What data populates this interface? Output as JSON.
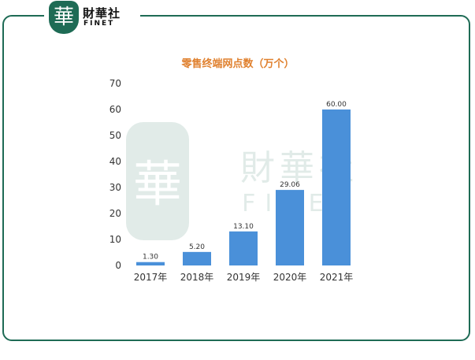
{
  "brand": {
    "name_cn": "財華社",
    "name_en": "FINET",
    "mark": "華",
    "color": "#1e6b55"
  },
  "watermark": {
    "name_cn": "財華社",
    "name_en": "FINET",
    "mark": "華"
  },
  "chart_data": {
    "type": "bar",
    "title": "零售终端网点数（万个）",
    "categories": [
      "2017年",
      "2018年",
      "2019年",
      "2020年",
      "2021年"
    ],
    "values": [
      1.3,
      5.2,
      13.1,
      29.06,
      60.0
    ],
    "value_labels": [
      "1.30",
      "5.20",
      "13.10",
      "29.06",
      "60.00"
    ],
    "ylim": [
      0,
      70
    ],
    "yticks": [
      0,
      10,
      20,
      30,
      40,
      50,
      60,
      70
    ],
    "grid": false,
    "bar_color": "#4a90d9",
    "title_color": "#e0812f"
  }
}
